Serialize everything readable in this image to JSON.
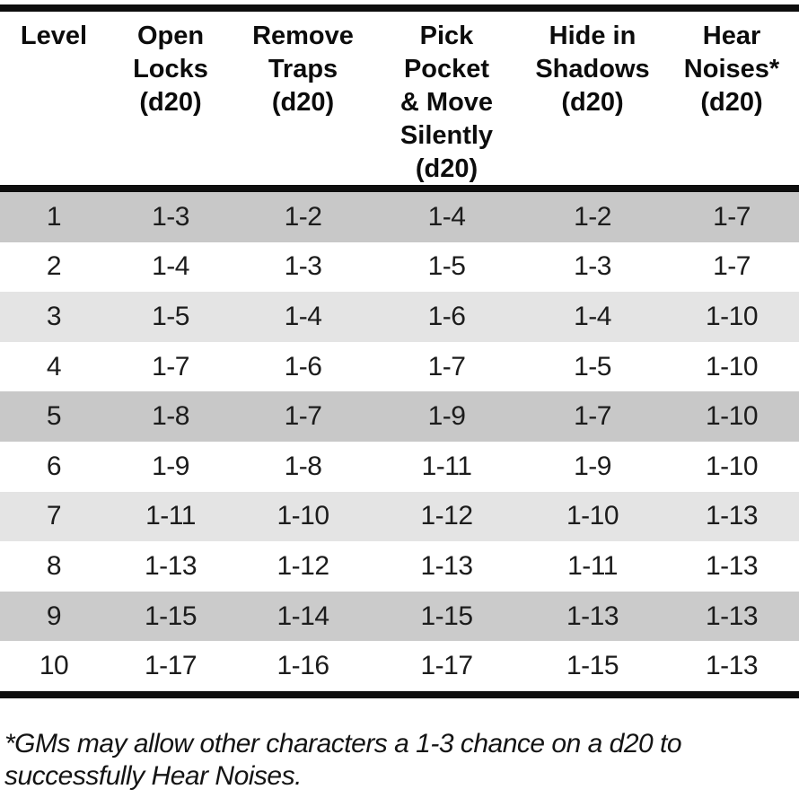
{
  "table": {
    "columns": [
      {
        "id": "level",
        "label": "Level",
        "lines": [
          "Level"
        ]
      },
      {
        "id": "open-locks",
        "label": "Open Locks (d20)",
        "lines": [
          "Open",
          "Locks",
          "(d20)"
        ]
      },
      {
        "id": "remove-traps",
        "label": "Remove Traps (d20)",
        "lines": [
          "Remove",
          "Traps",
          "(d20)"
        ]
      },
      {
        "id": "pick-pocket-move-silently",
        "label": "Pick Pocket & Move Silently (d20)",
        "lines": [
          "Pick",
          "Pocket",
          "& Move",
          "Silently",
          "(d20)"
        ]
      },
      {
        "id": "hide-in-shadows",
        "label": "Hide in Shadows (d20)",
        "lines": [
          "Hide in",
          "Shadows",
          "(d20)"
        ]
      },
      {
        "id": "hear-noises",
        "label": "Hear Noises* (d20)",
        "lines": [
          "Hear",
          "Noises*",
          "(d20)"
        ]
      }
    ],
    "rows": [
      {
        "level": "1",
        "values": [
          "1-3",
          "1-2",
          "1-4",
          "1-2",
          "1-7"
        ],
        "bg": "#c8c8c8"
      },
      {
        "level": "2",
        "values": [
          "1-4",
          "1-3",
          "1-5",
          "1-3",
          "1-7"
        ],
        "bg": "#ffffff"
      },
      {
        "level": "3",
        "values": [
          "1-5",
          "1-4",
          "1-6",
          "1-4",
          "1-10"
        ],
        "bg": "#e4e4e4"
      },
      {
        "level": "4",
        "values": [
          "1-7",
          "1-6",
          "1-7",
          "1-5",
          "1-10"
        ],
        "bg": "#ffffff"
      },
      {
        "level": "5",
        "values": [
          "1-8",
          "1-7",
          "1-9",
          "1-7",
          "1-10"
        ],
        "bg": "#c8c8c8"
      },
      {
        "level": "6",
        "values": [
          "1-9",
          "1-8",
          "1-11",
          "1-9",
          "1-10"
        ],
        "bg": "#ffffff"
      },
      {
        "level": "7",
        "values": [
          "1-11",
          "1-10",
          "1-12",
          "1-10",
          "1-13"
        ],
        "bg": "#e4e4e4"
      },
      {
        "level": "8",
        "values": [
          "1-13",
          "1-12",
          "1-13",
          "1-11",
          "1-13"
        ],
        "bg": "#ffffff"
      },
      {
        "level": "9",
        "values": [
          "1-15",
          "1-14",
          "1-15",
          "1-13",
          "1-13"
        ],
        "bg": "#cbcbcb"
      },
      {
        "level": "10",
        "values": [
          "1-17",
          "1-16",
          "1-17",
          "1-15",
          "1-13"
        ],
        "bg": "#ffffff"
      }
    ]
  },
  "footnote": {
    "line1": "*GMs may allow other characters a 1-3 chance on a d20 to",
    "line2": "successfully Hear Noises."
  },
  "colors": {
    "border": "#0e0e0e",
    "row_shade_dark": "#c8c8c8",
    "row_shade_light": "#e4e4e4",
    "text": "#1c1c1c"
  }
}
